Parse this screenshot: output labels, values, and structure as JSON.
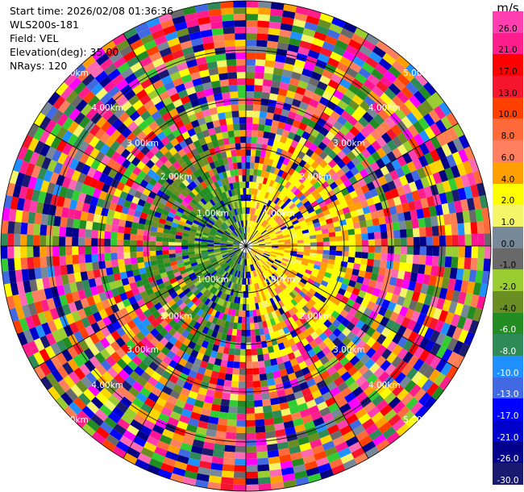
{
  "header": {
    "start_time": "Start time: 2026/02/08 01:36:36",
    "instrument": "WLS200s-181",
    "field": "Field: VEL",
    "elevation": "Elevation(deg): 35.00",
    "nrays": "NRays: 120"
  },
  "ring_labels": [
    "1.00km",
    "2.00km",
    "3.00km",
    "4.00km",
    "5.00km"
  ],
  "colorbar": {
    "unit": "m/s",
    "bins": [
      {
        "label": "26.0",
        "color": "#ff3fb0"
      },
      {
        "label": "21.0",
        "color": "#ff1e8c"
      },
      {
        "label": "17.0",
        "color": "#ff0000"
      },
      {
        "label": "13.0",
        "color": "#f5162e"
      },
      {
        "label": "10.0",
        "color": "#ff4000"
      },
      {
        "label": "8.0",
        "color": "#ff6a3a"
      },
      {
        "label": "6.0",
        "color": "#ff8060"
      },
      {
        "label": "4.0",
        "color": "#ffa000"
      },
      {
        "label": "2.0",
        "color": "#ffff00"
      },
      {
        "label": "1.0",
        "color": "#f5f56a"
      },
      {
        "label": "0.0",
        "color": "#778899"
      },
      {
        "label": "-1.0",
        "color": "#696969"
      },
      {
        "label": "-2.0",
        "color": "#9acd32"
      },
      {
        "label": "-4.0",
        "color": "#6b8e23"
      },
      {
        "label": "-6.0",
        "color": "#228b22"
      },
      {
        "label": "-8.0",
        "color": "#2e8b57"
      },
      {
        "label": "-10.0",
        "color": "#1e90ff"
      },
      {
        "label": "-13.0",
        "color": "#4169e1"
      },
      {
        "label": "-17.0",
        "color": "#0000ff"
      },
      {
        "label": "-21.0",
        "color": "#0000cd"
      },
      {
        "label": "-26.0",
        "color": "#00008b"
      },
      {
        "label": "-30.0",
        "color": "#191970"
      }
    ]
  }
}
